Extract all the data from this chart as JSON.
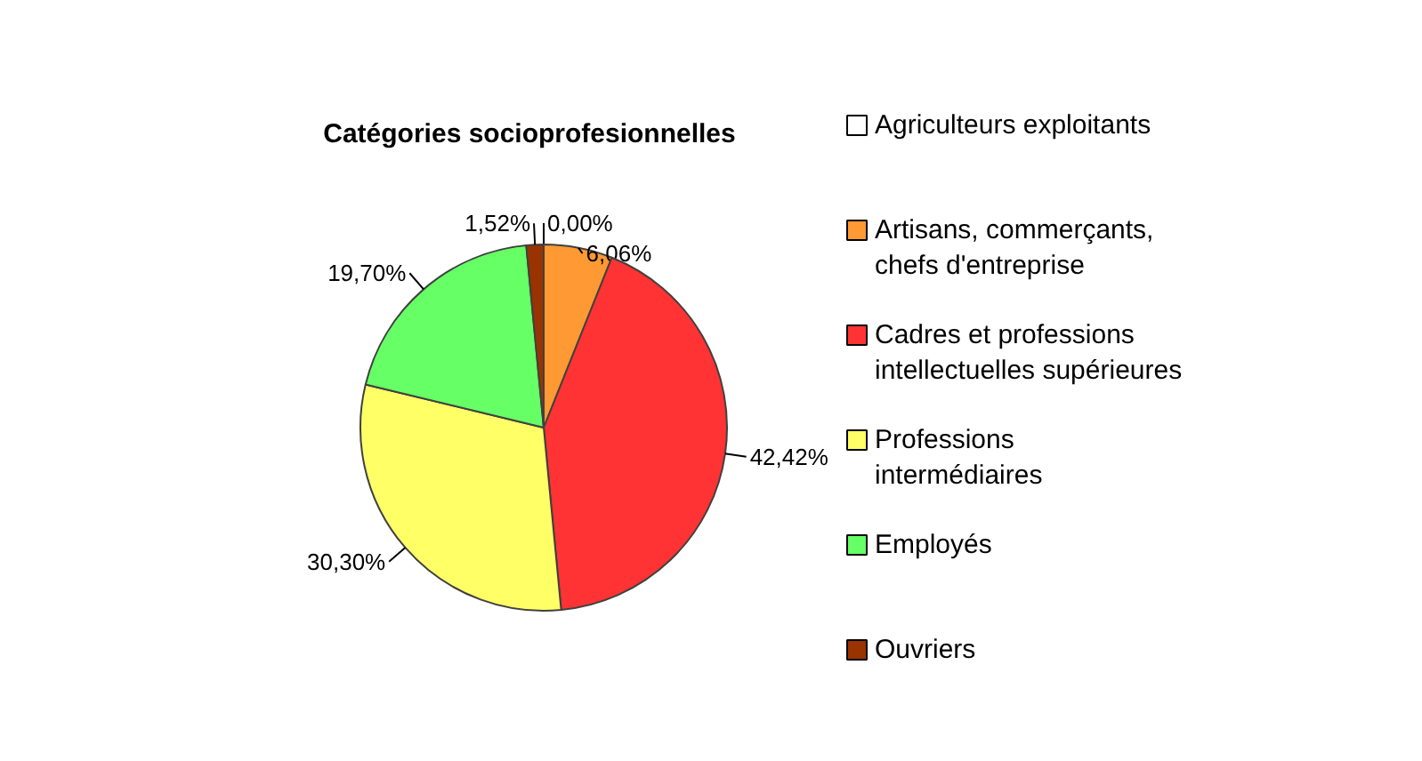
{
  "chart_data": {
    "type": "pie",
    "title": "Catégories socioprofesionnelles",
    "categories": [
      "Agriculteurs exploitants",
      "Artisans, commerçants, chefs d'entreprise",
      "Cadres et professions intellectuelles supérieures",
      "Professions intermédiaires",
      "Employés",
      "Ouvriers"
    ],
    "values": [
      0,
      6.06,
      42.42,
      30.3,
      19.7,
      1.52
    ],
    "colors": [
      "#ffffff",
      "#ff9933",
      "#ff3333",
      "#ffff66",
      "#66ff66",
      "#993300"
    ],
    "value_labels": [
      "0,00%",
      "6,06%",
      "42,42%",
      "30,30%",
      "19,70%",
      "1,52%"
    ],
    "legend": "right"
  }
}
